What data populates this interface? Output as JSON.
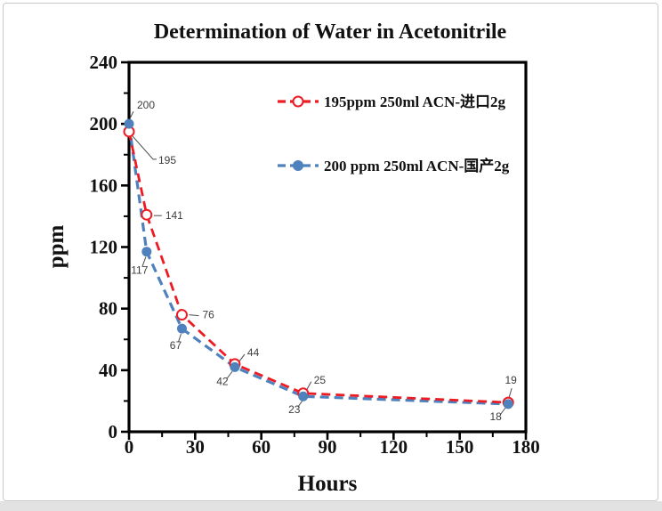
{
  "figure": {
    "background": "#ffffff",
    "card_border_color": "#c9c9c9",
    "bottom_strip_color": "#e2e2e2"
  },
  "chart_data": {
    "type": "line",
    "title": "Determination of Water in Acetonitrile",
    "xlabel": "Hours",
    "ylabel": "ppm",
    "xlim": [
      0,
      180
    ],
    "ylim": [
      0,
      240
    ],
    "x_major_ticks": [
      0,
      30,
      60,
      90,
      120,
      150,
      180
    ],
    "x_minor_tick_step": 15,
    "y_major_ticks": [
      0,
      40,
      80,
      120,
      160,
      200,
      240
    ],
    "y_minor_tick_step": 20,
    "grid": false,
    "legend_position": "inside-top-center",
    "axis_color": "#000000",
    "series": [
      {
        "name": "195ppm  250ml ACN-进口2g",
        "color": "#ED1C24",
        "marker": "open-circle",
        "line_style": "dashed",
        "line_width": 2.8,
        "x": [
          0,
          8,
          24,
          48,
          79,
          172
        ],
        "values": [
          195,
          141,
          76,
          44,
          25,
          19
        ],
        "point_labels": [
          {
            "text": "195",
            "dx": 33,
            "dy": 36,
            "anchor": "start",
            "leader": [
              [
                3,
                4
              ],
              [
                27,
                31
              ],
              [
                31,
                31
              ]
            ]
          },
          {
            "text": "141",
            "dx": 21,
            "dy": 5,
            "anchor": "start",
            "leader": [
              [
                8,
                1
              ],
              [
                17,
                1
              ]
            ]
          },
          {
            "text": "76",
            "dx": 23,
            "dy": 4,
            "anchor": "start",
            "leader": [
              [
                8,
                0
              ],
              [
                19,
                1
              ]
            ]
          },
          {
            "text": "44",
            "dx": 14,
            "dy": -9,
            "anchor": "start",
            "leader": [
              [
                5,
                -3
              ],
              [
                11,
                -11
              ]
            ]
          },
          {
            "text": "25",
            "dx": 12,
            "dy": -11,
            "anchor": "start",
            "leader": [
              [
                4,
                -4
              ],
              [
                9,
                -13
              ]
            ]
          },
          {
            "text": "19",
            "dx": 3,
            "dy": -21,
            "anchor": "middle",
            "leader": [
              [
                1,
                -6
              ],
              [
                4,
                -16
              ]
            ]
          }
        ]
      },
      {
        "name": "200 ppm 250ml ACN-国产2g",
        "color": "#4F81BD",
        "marker": "filled-circle",
        "line_style": "dashed",
        "line_width": 3.2,
        "x": [
          0,
          8,
          24,
          48,
          79,
          172
        ],
        "values": [
          200,
          117,
          67,
          42,
          23,
          18
        ],
        "point_labels": [
          {
            "text": "200",
            "dx": 9,
            "dy": -17,
            "anchor": "start",
            "leader": [
              [
                1,
                -6
              ],
              [
                5,
                -14
              ]
            ]
          },
          {
            "text": "117",
            "dx": -8,
            "dy": 25,
            "anchor": "middle",
            "leader": [
              [
                -1,
                6
              ],
              [
                -5,
                17
              ]
            ]
          },
          {
            "text": "67",
            "dx": -7,
            "dy": 23,
            "anchor": "middle",
            "leader": [
              [
                -1,
                6
              ],
              [
                -4,
                15
              ]
            ]
          },
          {
            "text": "42",
            "dx": -14,
            "dy": 20,
            "anchor": "middle",
            "leader": [
              [
                -3,
                5
              ],
              [
                -9,
                13
              ]
            ]
          },
          {
            "text": "23",
            "dx": -10,
            "dy": 19,
            "anchor": "middle",
            "leader": [
              [
                -1,
                5
              ],
              [
                -6,
                12
              ]
            ]
          },
          {
            "text": "18",
            "dx": -14,
            "dy": 18,
            "anchor": "middle",
            "leader": [
              [
                -3,
                4
              ],
              [
                -9,
                12
              ]
            ]
          }
        ]
      }
    ]
  }
}
